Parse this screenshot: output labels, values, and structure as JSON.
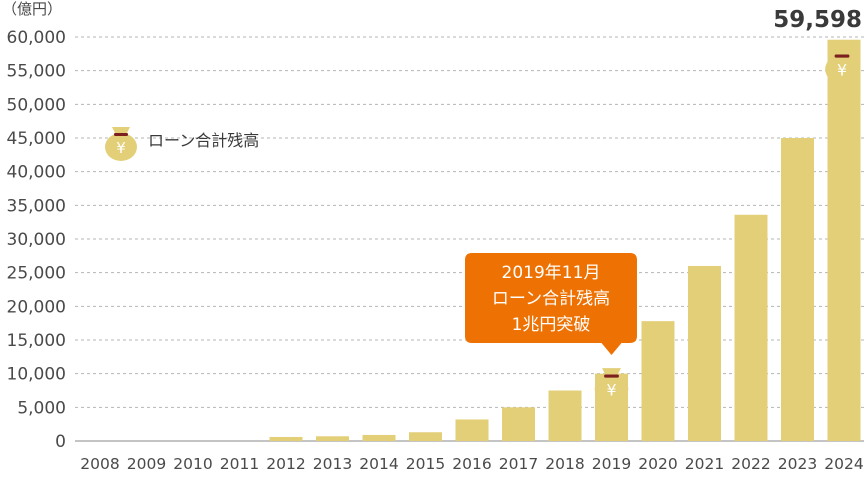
{
  "chart_data": {
    "type": "bar",
    "unit_label": "（億円）",
    "categories": [
      "2008",
      "2009",
      "2010",
      "2011",
      "2012",
      "2013",
      "2014",
      "2015",
      "2016",
      "2017",
      "2018",
      "2019",
      "2020",
      "2021",
      "2022",
      "2023",
      "2024"
    ],
    "series": [
      {
        "name": "ローン合計残高",
        "values": [
          0,
          0,
          0,
          0,
          600,
          700,
          900,
          1300,
          3200,
          5000,
          7500,
          10000,
          17800,
          26000,
          33600,
          45000,
          59598
        ]
      }
    ],
    "yticks": [
      "0",
      "5,000",
      "10,000",
      "15,000",
      "20,000",
      "25,000",
      "30,000",
      "35,000",
      "40,000",
      "45,000",
      "50,000",
      "55,000",
      "60,000"
    ],
    "ylim": [
      0,
      60000
    ],
    "grid": true,
    "final_value_label": "59,598",
    "legend": {
      "label": "ローン合計残高",
      "placement": "top-left"
    },
    "callout": {
      "lines": [
        "2019年11月",
        "ローン合計残高",
        "1兆円突破"
      ],
      "category": "2019"
    },
    "colors": {
      "bar": "#e3cf78",
      "grid": "#b5b5b5",
      "callout": "#ee7203",
      "bag": "#e3cf78",
      "bag_tie": "#7d1f1f"
    }
  }
}
